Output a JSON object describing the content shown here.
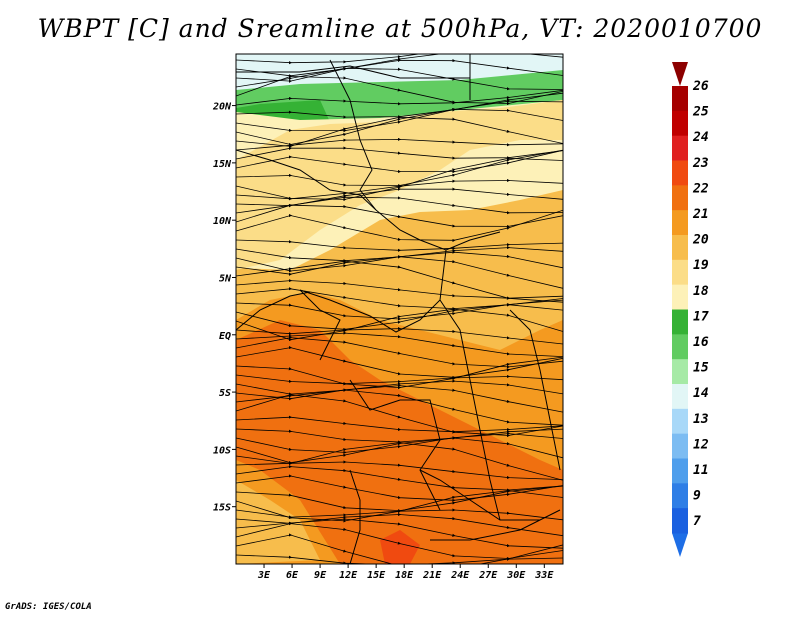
{
  "title": "WBPT [C] and Sreamline at 500hPa, VT: 2020010700",
  "credit": "GrADS: IGES/COLA",
  "axes": {
    "lat_labels": [
      {
        "label": "20N",
        "value": 20
      },
      {
        "label": "15N",
        "value": 15
      },
      {
        "label": "10N",
        "value": 10
      },
      {
        "label": "5N",
        "value": 5
      },
      {
        "label": "EQ",
        "value": 0
      },
      {
        "label": "5S",
        "value": -5
      },
      {
        "label": "10S",
        "value": -10
      },
      {
        "label": "15S",
        "value": -15
      }
    ],
    "lon_labels": [
      {
        "label": "3E",
        "value": 3
      },
      {
        "label": "6E",
        "value": 6
      },
      {
        "label": "9E",
        "value": 9
      },
      {
        "label": "12E",
        "value": 12
      },
      {
        "label": "15E",
        "value": 15
      },
      {
        "label": "18E",
        "value": 18
      },
      {
        "label": "21E",
        "value": 21
      },
      {
        "label": "24E",
        "value": 24
      },
      {
        "label": "27E",
        "value": 27
      },
      {
        "label": "30E",
        "value": 30
      },
      {
        "label": "33E",
        "value": 33
      }
    ],
    "lon_range": [
      0,
      35
    ],
    "lat_range": [
      -20,
      24.5
    ]
  },
  "colorbar": {
    "labels": [
      "26",
      "25",
      "24",
      "23",
      "22",
      "21",
      "20",
      "19",
      "18",
      "17",
      "16",
      "15",
      "14",
      "13",
      "12",
      "11",
      "9",
      "7"
    ],
    "colors": [
      "#a50000",
      "#c00000",
      "#e02020",
      "#f04a10",
      "#f07010",
      "#f49a20",
      "#f7bd4c",
      "#fbdd88",
      "#fdf1b8",
      "#35b235",
      "#61cc61",
      "#a6eaa6",
      "#e2f6f6",
      "#a8d8f8",
      "#7cbcf2",
      "#4e9eec",
      "#2e7ee6",
      "#1a60e0"
    ],
    "top_arrow_color": "#8c0000",
    "bottom_arrow_color": "#1e6ee6"
  },
  "field_colors": {
    "ocean_north": "#e2f6f6",
    "green_band": "#61cc61",
    "green_dark": "#35b235",
    "green_light": "#a6eaa6",
    "cream": "#fdf1b8",
    "light_orange": "#fbdd88",
    "medium_orange": "#f7bd4c",
    "orange": "#f49a20",
    "deep_orange": "#f07010",
    "red_orange": "#f04a10"
  }
}
